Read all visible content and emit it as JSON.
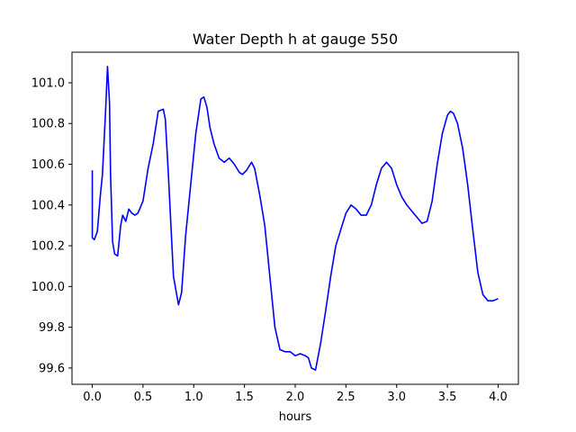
{
  "chart_data": {
    "type": "line",
    "title": "Water Depth h at gauge 550",
    "xlabel": "hours",
    "ylabel": "",
    "xlim": [
      -0.2,
      4.2
    ],
    "ylim": [
      99.52,
      101.15
    ],
    "grid": false,
    "x_ticks": [
      0.0,
      0.5,
      1.0,
      1.5,
      2.0,
      2.5,
      3.0,
      3.5,
      4.0
    ],
    "x_tick_labels": [
      "0.0",
      "0.5",
      "1.0",
      "1.5",
      "2.0",
      "2.5",
      "3.0",
      "3.5",
      "4.0"
    ],
    "y_ticks": [
      99.6,
      99.8,
      100.0,
      100.2,
      100.4,
      100.6,
      100.8,
      101.0
    ],
    "y_tick_labels": [
      "99.6",
      "99.8",
      "100.0",
      "100.2",
      "100.4",
      "100.6",
      "100.8",
      "101.0"
    ],
    "series": [
      {
        "color": "#0000ff",
        "x": [
          0.0,
          0.0,
          0.02,
          0.05,
          0.08,
          0.1,
          0.13,
          0.15,
          0.17,
          0.18,
          0.2,
          0.22,
          0.25,
          0.28,
          0.3,
          0.33,
          0.36,
          0.39,
          0.42,
          0.45,
          0.5,
          0.55,
          0.6,
          0.65,
          0.7,
          0.72,
          0.75,
          0.8,
          0.85,
          0.88,
          0.92,
          0.97,
          1.02,
          1.07,
          1.1,
          1.13,
          1.16,
          1.2,
          1.25,
          1.3,
          1.35,
          1.4,
          1.45,
          1.48,
          1.52,
          1.57,
          1.6,
          1.65,
          1.7,
          1.75,
          1.8,
          1.85,
          1.9,
          1.95,
          2.0,
          2.05,
          2.1,
          2.13,
          2.16,
          2.2,
          2.25,
          2.3,
          2.35,
          2.4,
          2.45,
          2.5,
          2.55,
          2.6,
          2.65,
          2.7,
          2.75,
          2.8,
          2.85,
          2.9,
          2.95,
          3.0,
          3.05,
          3.1,
          3.15,
          3.2,
          3.25,
          3.3,
          3.35,
          3.4,
          3.45,
          3.5,
          3.53,
          3.56,
          3.6,
          3.65,
          3.7,
          3.75,
          3.8,
          3.85,
          3.9,
          3.95,
          4.0
        ],
        "y": [
          100.57,
          100.24,
          100.23,
          100.27,
          100.45,
          100.55,
          100.85,
          101.08,
          100.9,
          100.55,
          100.22,
          100.16,
          100.15,
          100.3,
          100.35,
          100.32,
          100.38,
          100.36,
          100.35,
          100.36,
          100.42,
          100.58,
          100.7,
          100.86,
          100.87,
          100.82,
          100.55,
          100.05,
          99.91,
          99.97,
          100.25,
          100.5,
          100.75,
          100.92,
          100.93,
          100.88,
          100.78,
          100.7,
          100.63,
          100.61,
          100.63,
          100.6,
          100.56,
          100.55,
          100.57,
          100.61,
          100.58,
          100.45,
          100.3,
          100.05,
          99.8,
          99.69,
          99.68,
          99.68,
          99.66,
          99.67,
          99.66,
          99.65,
          99.6,
          99.59,
          99.72,
          99.88,
          100.05,
          100.2,
          100.28,
          100.36,
          100.4,
          100.38,
          100.35,
          100.35,
          100.4,
          100.5,
          100.58,
          100.61,
          100.58,
          100.5,
          100.44,
          100.4,
          100.37,
          100.34,
          100.31,
          100.32,
          100.42,
          100.6,
          100.75,
          100.84,
          100.86,
          100.85,
          100.8,
          100.68,
          100.5,
          100.28,
          100.07,
          99.96,
          99.93,
          99.93,
          99.94
        ]
      }
    ]
  }
}
